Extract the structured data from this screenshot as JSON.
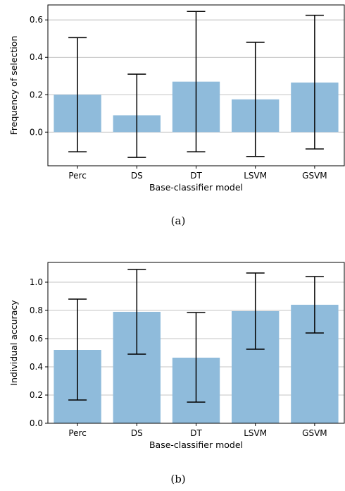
{
  "figure": {
    "captions": [
      "(a)",
      "(b)"
    ]
  },
  "chart_data": [
    {
      "type": "bar",
      "categories": [
        "Perc",
        "DS",
        "DT",
        "LSVM",
        "GSVM"
      ],
      "values": [
        0.2,
        0.09,
        0.27,
        0.175,
        0.265
      ],
      "error_low": [
        -0.105,
        -0.135,
        -0.105,
        -0.13,
        -0.09
      ],
      "error_high": [
        0.505,
        0.31,
        0.645,
        0.48,
        0.625
      ],
      "xlabel": "Base-classifier model",
      "ylabel": "Frequency of selection",
      "ylim": [
        -0.18,
        0.68
      ],
      "yticks": [
        0.0,
        0.2,
        0.4,
        0.6
      ],
      "ytick_labels": [
        "0.0",
        "0.2",
        "0.4",
        "0.6"
      ],
      "grid": "y",
      "bar_color": "#8fbbdb",
      "error_color": "#000000"
    },
    {
      "type": "bar",
      "categories": [
        "Perc",
        "DS",
        "DT",
        "LSVM",
        "GSVM"
      ],
      "values": [
        0.52,
        0.79,
        0.465,
        0.795,
        0.84
      ],
      "error_low": [
        0.165,
        0.49,
        0.15,
        0.525,
        0.64
      ],
      "error_high": [
        0.88,
        1.09,
        0.785,
        1.065,
        1.04
      ],
      "xlabel": "Base-classifier model",
      "ylabel": "Individual accuracy",
      "ylim": [
        0.0,
        1.14
      ],
      "yticks": [
        0.0,
        0.2,
        0.4,
        0.6,
        0.8,
        1.0
      ],
      "ytick_labels": [
        "0.0",
        "0.2",
        "0.4",
        "0.6",
        "0.8",
        "1.0"
      ],
      "grid": "y",
      "bar_color": "#8fbbdb",
      "error_color": "#000000"
    }
  ]
}
